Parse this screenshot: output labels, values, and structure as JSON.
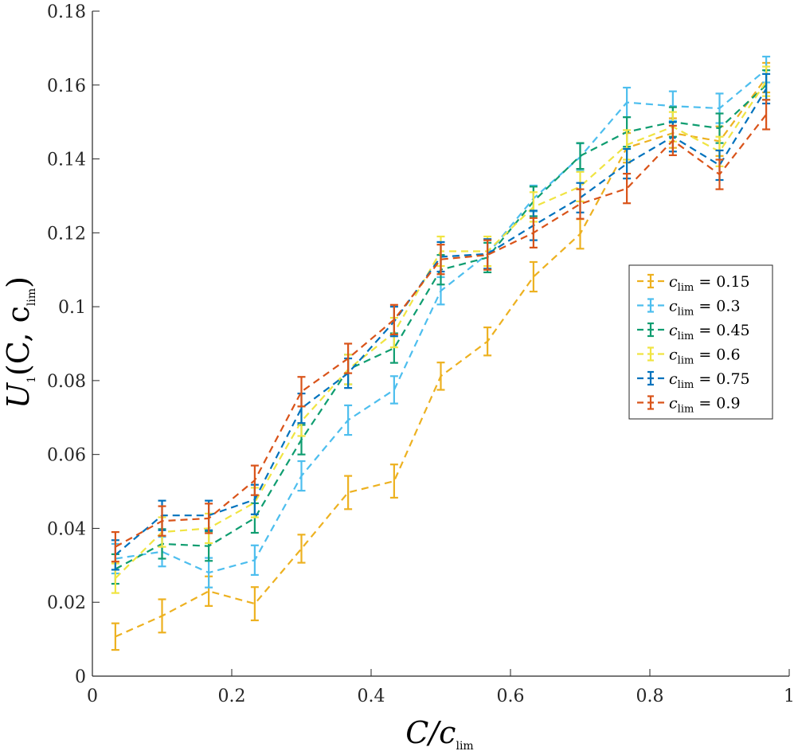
{
  "chart_data": {
    "type": "line",
    "title": "",
    "xlabel": {
      "main": "C/c",
      "sub": "lim"
    },
    "ylabel": {
      "main": "U",
      "sub1": "1",
      "mid": "(C, c",
      "sub2": "lim",
      "end": ")"
    },
    "xlim": [
      0,
      1
    ],
    "ylim": [
      0,
      0.18
    ],
    "xticks": [
      0,
      0.2,
      0.4,
      0.6,
      0.8,
      1
    ],
    "xtick_labels": [
      "0",
      "0.2",
      "0.4",
      "0.6",
      "0.8",
      "1"
    ],
    "yticks": [
      0,
      0.02,
      0.04,
      0.06,
      0.08,
      0.1,
      0.12,
      0.14,
      0.16,
      0.18
    ],
    "ytick_labels": [
      "0",
      "0.02",
      "0.04",
      "0.06",
      "0.08",
      "0.1",
      "0.12",
      "0.14",
      "0.16",
      "0.18"
    ],
    "grid": false,
    "legend_position": "center-right",
    "x": [
      0.033,
      0.1,
      0.167,
      0.233,
      0.3,
      0.367,
      0.433,
      0.5,
      0.567,
      0.633,
      0.7,
      0.767,
      0.833,
      0.9,
      0.967
    ],
    "series": [
      {
        "legend_var": "c",
        "legend_sub": "lim",
        "legend_val": " = 0.15",
        "color": "#EDB120",
        "values": [
          0.0107,
          0.0163,
          0.023,
          0.0196,
          0.0345,
          0.0497,
          0.0528,
          0.0812,
          0.0906,
          0.1081,
          0.1197,
          0.143,
          0.147,
          0.1448,
          0.162
        ],
        "errors": [
          0.0036,
          0.0045,
          0.004,
          0.0045,
          0.0038,
          0.0045,
          0.0045,
          0.0037,
          0.0038,
          0.004,
          0.004,
          0.004,
          0.004,
          0.004,
          0.004
        ]
      },
      {
        "legend_var": "c",
        "legend_sub": "lim",
        "legend_val": " = 0.3",
        "color": "#4DBEEE",
        "values": [
          0.0318,
          0.0337,
          0.028,
          0.0314,
          0.0542,
          0.0693,
          0.0775,
          0.1043,
          0.1142,
          0.1293,
          0.1405,
          0.1553,
          0.1543,
          0.1537,
          0.1642
        ],
        "errors": [
          0.004,
          0.004,
          0.004,
          0.004,
          0.004,
          0.004,
          0.0037,
          0.0037,
          0.004,
          0.0035,
          0.0037,
          0.004,
          0.004,
          0.004,
          0.0035
        ]
      },
      {
        "legend_var": "c",
        "legend_sub": "lim",
        "legend_val": " = 0.45",
        "color": "#0F9D70",
        "values": [
          0.029,
          0.0358,
          0.0352,
          0.0428,
          0.064,
          0.083,
          0.0888,
          0.11,
          0.1133,
          0.1285,
          0.1408,
          0.1473,
          0.15,
          0.1483,
          0.16
        ],
        "errors": [
          0.004,
          0.004,
          0.004,
          0.004,
          0.004,
          0.004,
          0.004,
          0.004,
          0.004,
          0.004,
          0.0035,
          0.004,
          0.004,
          0.004,
          0.004
        ]
      },
      {
        "legend_var": "c",
        "legend_sub": "lim",
        "legend_val": " = 0.6",
        "color": "#F0E442",
        "values": [
          0.0265,
          0.039,
          0.04,
          0.047,
          0.069,
          0.083,
          0.093,
          0.115,
          0.115,
          0.127,
          0.1325,
          0.1438,
          0.1487,
          0.142,
          0.161
        ],
        "errors": [
          0.004,
          0.004,
          0.004,
          0.004,
          0.004,
          0.004,
          0.004,
          0.004,
          0.004,
          0.004,
          0.004,
          0.004,
          0.004,
          0.004,
          0.004
        ]
      },
      {
        "legend_var": "c",
        "legend_sub": "lim",
        "legend_val": " = 0.75",
        "color": "#0072BD",
        "values": [
          0.0328,
          0.0435,
          0.0435,
          0.0478,
          0.0725,
          0.082,
          0.096,
          0.1135,
          0.1143,
          0.122,
          0.1295,
          0.1387,
          0.146,
          0.1383,
          0.159
        ],
        "errors": [
          0.004,
          0.004,
          0.004,
          0.004,
          0.004,
          0.004,
          0.004,
          0.004,
          0.004,
          0.004,
          0.004,
          0.004,
          0.004,
          0.004,
          0.004
        ]
      },
      {
        "legend_var": "c",
        "legend_sub": "lim",
        "legend_val": " = 0.9",
        "color": "#D95319",
        "values": [
          0.035,
          0.042,
          0.0427,
          0.053,
          0.077,
          0.086,
          0.0965,
          0.1128,
          0.114,
          0.12,
          0.1278,
          0.132,
          0.145,
          0.1358,
          0.152
        ],
        "errors": [
          0.004,
          0.004,
          0.004,
          0.004,
          0.004,
          0.004,
          0.004,
          0.004,
          0.004,
          0.004,
          0.004,
          0.004,
          0.004,
          0.004,
          0.004
        ]
      }
    ]
  }
}
